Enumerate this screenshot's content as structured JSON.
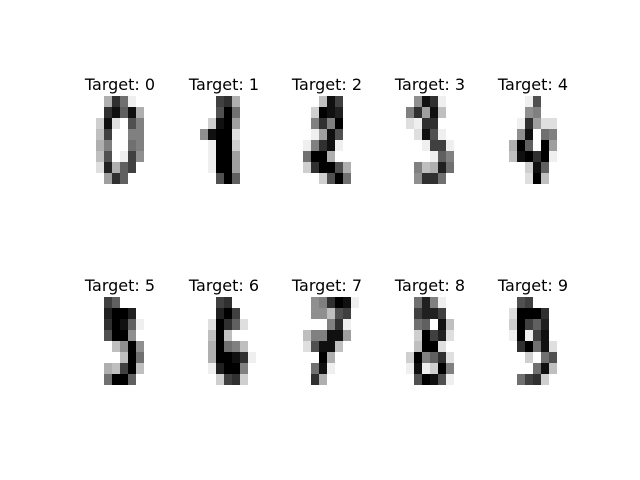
{
  "figure": {
    "colormap": "gray_r",
    "value_range": [
      0,
      16
    ],
    "digits": [
      {
        "label": "Target: 0",
        "target": 0,
        "image": [
          [
            0,
            0,
            5,
            13,
            9,
            1,
            0,
            0
          ],
          [
            0,
            0,
            13,
            15,
            10,
            15,
            5,
            0
          ],
          [
            0,
            3,
            15,
            2,
            0,
            11,
            8,
            0
          ],
          [
            0,
            4,
            12,
            0,
            0,
            8,
            8,
            0
          ],
          [
            0,
            5,
            8,
            0,
            0,
            9,
            8,
            0
          ],
          [
            0,
            4,
            11,
            0,
            1,
            12,
            7,
            0
          ],
          [
            0,
            2,
            14,
            5,
            10,
            12,
            0,
            0
          ],
          [
            0,
            0,
            6,
            13,
            10,
            0,
            0,
            0
          ]
        ]
      },
      {
        "label": "Target: 1",
        "target": 1,
        "image": [
          [
            0,
            0,
            0,
            12,
            13,
            5,
            0,
            0
          ],
          [
            0,
            0,
            0,
            11,
            16,
            9,
            0,
            0
          ],
          [
            0,
            0,
            3,
            15,
            16,
            6,
            0,
            0
          ],
          [
            0,
            7,
            15,
            16,
            16,
            2,
            0,
            0
          ],
          [
            0,
            0,
            1,
            16,
            16,
            3,
            0,
            0
          ],
          [
            0,
            0,
            1,
            16,
            16,
            6,
            0,
            0
          ],
          [
            0,
            0,
            1,
            16,
            16,
            6,
            0,
            0
          ],
          [
            0,
            0,
            0,
            11,
            16,
            10,
            0,
            0
          ]
        ]
      },
      {
        "label": "Target: 2",
        "target": 2,
        "image": [
          [
            0,
            0,
            0,
            4,
            15,
            12,
            0,
            0
          ],
          [
            0,
            0,
            3,
            16,
            15,
            14,
            0,
            0
          ],
          [
            0,
            0,
            8,
            13,
            8,
            16,
            0,
            0
          ],
          [
            0,
            0,
            1,
            6,
            15,
            11,
            0,
            0
          ],
          [
            0,
            1,
            8,
            13,
            15,
            1,
            0,
            0
          ],
          [
            0,
            9,
            16,
            16,
            5,
            0,
            0,
            0
          ],
          [
            0,
            3,
            13,
            16,
            16,
            11,
            5,
            0
          ],
          [
            0,
            0,
            0,
            3,
            11,
            16,
            9,
            0
          ]
        ]
      },
      {
        "label": "Target: 3",
        "target": 3,
        "image": [
          [
            0,
            0,
            7,
            15,
            13,
            1,
            0,
            0
          ],
          [
            0,
            8,
            13,
            6,
            15,
            4,
            0,
            0
          ],
          [
            0,
            2,
            1,
            13,
            13,
            0,
            0,
            0
          ],
          [
            0,
            0,
            2,
            15,
            11,
            1,
            0,
            0
          ],
          [
            0,
            0,
            0,
            1,
            12,
            12,
            1,
            0
          ],
          [
            0,
            0,
            0,
            0,
            1,
            10,
            8,
            0
          ],
          [
            0,
            0,
            8,
            4,
            5,
            14,
            9,
            0
          ],
          [
            0,
            0,
            7,
            13,
            13,
            9,
            0,
            0
          ]
        ]
      },
      {
        "label": "Target: 4",
        "target": 4,
        "image": [
          [
            0,
            0,
            0,
            1,
            11,
            0,
            0,
            0
          ],
          [
            0,
            0,
            0,
            7,
            8,
            0,
            0,
            0
          ],
          [
            0,
            0,
            1,
            13,
            6,
            2,
            2,
            0
          ],
          [
            0,
            0,
            7,
            15,
            0,
            9,
            8,
            0
          ],
          [
            0,
            5,
            16,
            10,
            0,
            16,
            6,
            0
          ],
          [
            0,
            4,
            15,
            16,
            13,
            16,
            1,
            0
          ],
          [
            0,
            0,
            0,
            3,
            15,
            10,
            0,
            0
          ],
          [
            0,
            0,
            0,
            2,
            16,
            4,
            0,
            0
          ]
        ]
      },
      {
        "label": "Target: 5",
        "target": 5,
        "image": [
          [
            0,
            0,
            12,
            10,
            0,
            0,
            0,
            0
          ],
          [
            0,
            0,
            14,
            16,
            16,
            14,
            0,
            0
          ],
          [
            0,
            0,
            13,
            16,
            15,
            10,
            1,
            0
          ],
          [
            0,
            0,
            11,
            16,
            16,
            7,
            0,
            0
          ],
          [
            0,
            0,
            0,
            4,
            7,
            16,
            7,
            0
          ],
          [
            0,
            0,
            0,
            0,
            4,
            16,
            9,
            0
          ],
          [
            0,
            0,
            5,
            4,
            12,
            16,
            4,
            0
          ],
          [
            0,
            0,
            9,
            16,
            16,
            10,
            0,
            0
          ]
        ]
      },
      {
        "label": "Target: 6",
        "target": 6,
        "image": [
          [
            0,
            0,
            0,
            12,
            13,
            0,
            0,
            0
          ],
          [
            0,
            0,
            0,
            14,
            16,
            12,
            0,
            0
          ],
          [
            0,
            0,
            2,
            16,
            13,
            10,
            2,
            0
          ],
          [
            0,
            0,
            4,
            16,
            4,
            0,
            0,
            0
          ],
          [
            0,
            0,
            5,
            16,
            9,
            8,
            4,
            0
          ],
          [
            0,
            0,
            5,
            16,
            16,
            15,
            13,
            1
          ],
          [
            0,
            0,
            1,
            14,
            16,
            16,
            8,
            0
          ],
          [
            0,
            0,
            0,
            3,
            12,
            13,
            3,
            0
          ]
        ]
      },
      {
        "label": "Target: 7",
        "target": 7,
        "image": [
          [
            0,
            0,
            7,
            8,
            13,
            16,
            15,
            1
          ],
          [
            0,
            0,
            7,
            7,
            4,
            11,
            12,
            0
          ],
          [
            0,
            0,
            0,
            0,
            8,
            13,
            1,
            0
          ],
          [
            0,
            4,
            8,
            8,
            15,
            15,
            6,
            0
          ],
          [
            0,
            2,
            11,
            15,
            15,
            4,
            0,
            0
          ],
          [
            0,
            0,
            0,
            16,
            5,
            0,
            0,
            0
          ],
          [
            0,
            0,
            9,
            15,
            1,
            0,
            0,
            0
          ],
          [
            0,
            0,
            13,
            5,
            0,
            0,
            0,
            0
          ]
        ]
      },
      {
        "label": "Target: 8",
        "target": 8,
        "image": [
          [
            0,
            0,
            9,
            14,
            8,
            1,
            0,
            0
          ],
          [
            0,
            0,
            12,
            14,
            14,
            12,
            0,
            0
          ],
          [
            0,
            0,
            9,
            10,
            0,
            15,
            4,
            0
          ],
          [
            0,
            0,
            3,
            16,
            12,
            14,
            2,
            0
          ],
          [
            0,
            0,
            4,
            16,
            16,
            2,
            0,
            0
          ],
          [
            0,
            3,
            16,
            8,
            10,
            13,
            2,
            0
          ],
          [
            0,
            1,
            15,
            1,
            3,
            16,
            8,
            0
          ],
          [
            0,
            0,
            11,
            16,
            15,
            11,
            1,
            0
          ]
        ]
      },
      {
        "label": "Target: 9",
        "target": 9,
        "image": [
          [
            0,
            0,
            11,
            12,
            0,
            0,
            0,
            0
          ],
          [
            0,
            2,
            16,
            16,
            16,
            13,
            0,
            0
          ],
          [
            0,
            3,
            16,
            12,
            10,
            14,
            0,
            0
          ],
          [
            0,
            1,
            16,
            1,
            12,
            15,
            0,
            0
          ],
          [
            0,
            0,
            13,
            16,
            9,
            15,
            2,
            0
          ],
          [
            0,
            0,
            0,
            3,
            0,
            9,
            11,
            0
          ],
          [
            0,
            0,
            0,
            0,
            9,
            15,
            4,
            0
          ],
          [
            0,
            0,
            9,
            12,
            13,
            3,
            0,
            0
          ]
        ]
      }
    ]
  }
}
